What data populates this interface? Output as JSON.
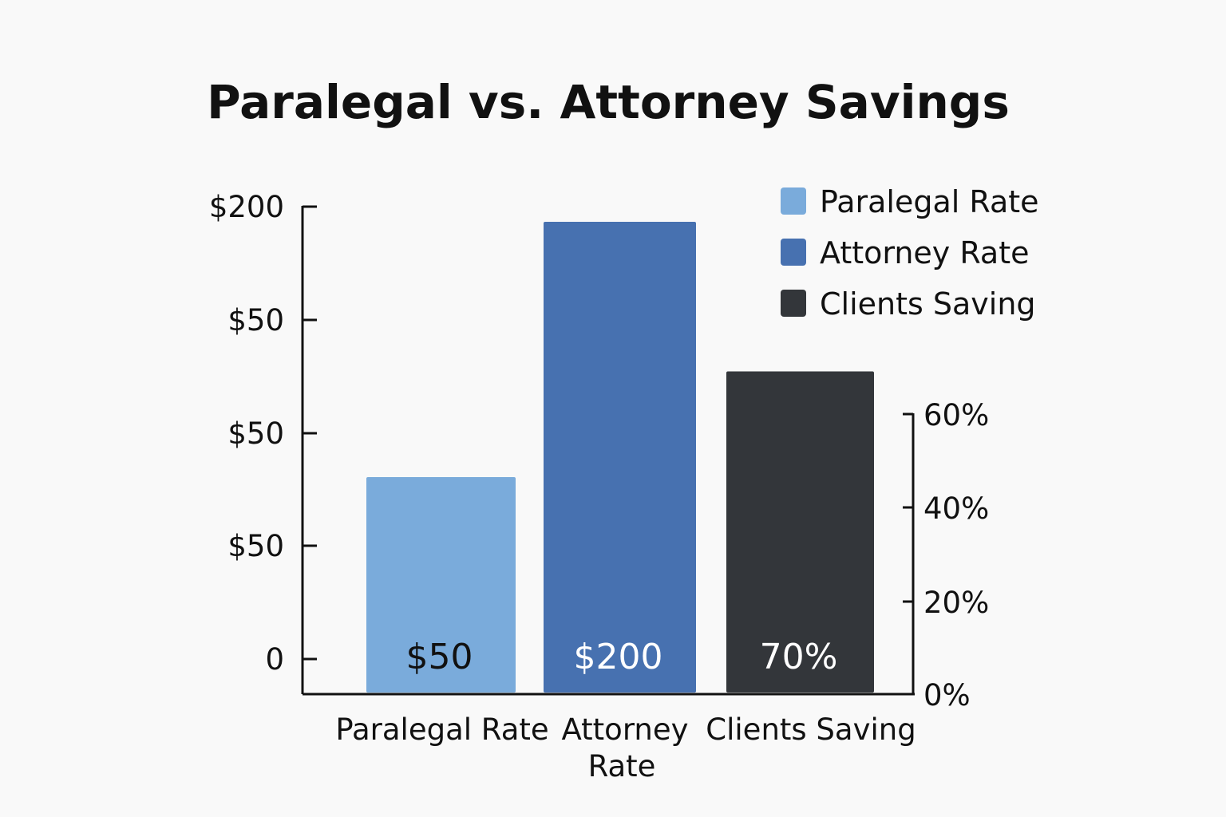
{
  "chart_data": {
    "type": "bar",
    "title": "Paralegal vs. Attorney Savings",
    "categories": [
      "Paralegal Rate",
      "Attorney Rate",
      "Clients Saving"
    ],
    "values": [
      50,
      200,
      70
    ],
    "value_labels": [
      "$50",
      "$200",
      "70%"
    ],
    "units": [
      "$",
      "$",
      "%"
    ],
    "left_axis": {
      "tick_labels": [
        "0",
        "$50",
        "$50",
        "$50",
        "$200"
      ],
      "ylim": [
        0,
        200
      ]
    },
    "right_axis": {
      "tick_labels": [
        "0%",
        "20%",
        "40%",
        "60%"
      ],
      "ylim": [
        0,
        100
      ]
    },
    "legend": {
      "placement": "top-right",
      "entries": [
        {
          "label": "Paralegal Rate",
          "color": "#7aabdb"
        },
        {
          "label": "Attorney Rate",
          "color": "#4771b0"
        },
        {
          "label": "Clients Saving",
          "color": "#33363a"
        }
      ]
    },
    "colors": [
      "#7aabdb",
      "#4771b0",
      "#33363a"
    ],
    "data_label_colors": [
      "#111111",
      "#ffffff",
      "#ffffff"
    ],
    "grid": false
  }
}
